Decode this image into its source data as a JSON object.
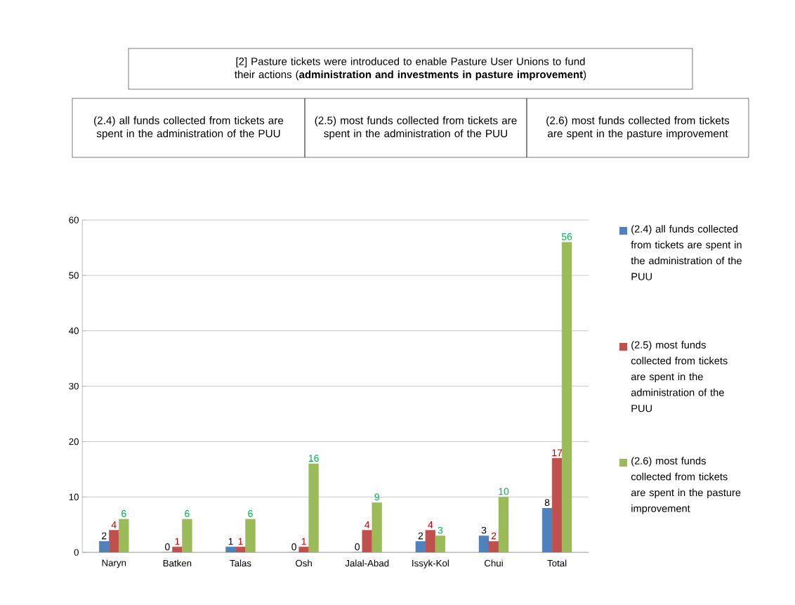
{
  "chart_data": {
    "type": "bar",
    "title": "[2] Pasture tickets were introduced to enable Pasture User Unions to fund their actions (**administration and investments in pasture improvement**)",
    "annotations": [
      "(2.4) all funds collected from tickets are spent in the administration of the PUU",
      "(2.5) most funds collected from tickets are spent in the administration of the PUU",
      "(2.6) most funds collected from tickets are spent in the pasture improvement"
    ],
    "categories": [
      "Naryn",
      "Batken",
      "Talas",
      "Osh",
      "Jalal-Abad",
      "Issyk-Kol",
      "Chui",
      "Total"
    ],
    "series": [
      {
        "name": "(2.4) all funds collected from tickets are spent in the administration of the PUU",
        "color": "#4f81bd",
        "values": [
          2,
          0,
          1,
          0,
          0,
          2,
          3,
          8
        ]
      },
      {
        "name": "(2.5) most funds collected from tickets are spent in the administration of the PUU",
        "color": "#c0504d",
        "values": [
          4,
          1,
          1,
          1,
          4,
          4,
          2,
          17
        ]
      },
      {
        "name": "(2.6) most funds collected from tickets are spent in the pasture improvement",
        "color": "#9bbb59",
        "values": [
          6,
          6,
          6,
          16,
          9,
          3,
          10,
          56
        ]
      }
    ],
    "ylim": [
      0,
      60
    ],
    "yticks": [
      0,
      10,
      20,
      30,
      40,
      50,
      60
    ],
    "grid": "y",
    "legend": "right",
    "data_labels": true
  }
}
